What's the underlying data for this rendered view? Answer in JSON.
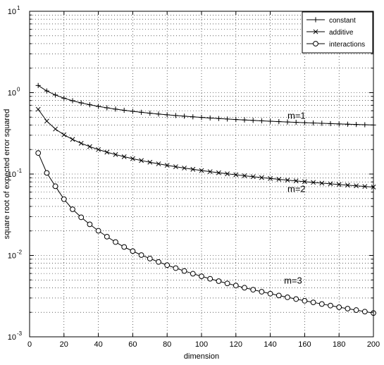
{
  "chart_data": {
    "type": "line",
    "xlabel": "dimension",
    "ylabel": "square root of expected error squared",
    "xlim": [
      0,
      200
    ],
    "ylim": [
      0.001,
      10
    ],
    "yscale": "log",
    "grid": true,
    "legend_position": "top-right",
    "x_ticks": [
      "0",
      "20",
      "40",
      "60",
      "80",
      "100",
      "120",
      "140",
      "160",
      "180",
      "200"
    ],
    "y_ticks": [
      {
        "base": "10",
        "exp": "-3"
      },
      {
        "base": "10",
        "exp": "-2"
      },
      {
        "base": "10",
        "exp": "-1"
      },
      {
        "base": "10",
        "exp": "0"
      },
      {
        "base": "10",
        "exp": "1"
      }
    ],
    "series": [
      {
        "name": "constant",
        "marker": "plus",
        "x": [
          5,
          10,
          15,
          20,
          25,
          30,
          35,
          40,
          45,
          50,
          55,
          60,
          65,
          70,
          75,
          80,
          85,
          90,
          95,
          100,
          105,
          110,
          115,
          120,
          125,
          130,
          135,
          140,
          145,
          150,
          155,
          160,
          165,
          170,
          175,
          180,
          185,
          190,
          195,
          200
        ],
        "values": [
          1.2247,
          1.0488,
          0.9354,
          0.8556,
          0.7958,
          0.7487,
          0.7104,
          0.6784,
          0.6513,
          0.628,
          0.6076,
          0.5896,
          0.5736,
          0.5593,
          0.5463,
          0.5345,
          0.5237,
          0.5138,
          0.5047,
          0.4963,
          0.4884,
          0.4811,
          0.4743,
          0.4679,
          0.4619,
          0.4562,
          0.4508,
          0.4457,
          0.4409,
          0.4363,
          0.432,
          0.4278,
          0.4239,
          0.4201,
          0.4165,
          0.413,
          0.4097,
          0.4065,
          0.4034,
          0.4005
        ]
      },
      {
        "name": "additive",
        "marker": "x",
        "x": [
          5,
          10,
          15,
          20,
          25,
          30,
          35,
          40,
          45,
          50,
          55,
          60,
          65,
          70,
          75,
          80,
          85,
          90,
          95,
          100,
          105,
          110,
          115,
          120,
          125,
          130,
          135,
          140,
          145,
          150,
          155,
          160,
          165,
          170,
          175,
          180,
          185,
          190,
          195,
          200
        ],
        "values": [
          0.6245,
          0.4472,
          0.3574,
          0.3038,
          0.2665,
          0.2387,
          0.2172,
          0.1999,
          0.1856,
          0.1736,
          0.1633,
          0.1544,
          0.1466,
          0.1397,
          0.1335,
          0.128,
          0.123,
          0.1185,
          0.1143,
          0.1105,
          0.107,
          0.1037,
          0.1007,
          0.0979,
          0.0952,
          0.0928,
          0.0904,
          0.0882,
          0.0862,
          0.0842,
          0.0824,
          0.0806,
          0.0789,
          0.0773,
          0.0758,
          0.0744,
          0.073,
          0.0717,
          0.0704,
          0.0692
        ]
      },
      {
        "name": "interactions",
        "marker": "circle",
        "x": [
          5,
          10,
          15,
          20,
          25,
          30,
          35,
          40,
          45,
          50,
          55,
          60,
          65,
          70,
          75,
          80,
          85,
          90,
          95,
          100,
          105,
          110,
          115,
          120,
          125,
          130,
          135,
          140,
          145,
          150,
          155,
          160,
          165,
          170,
          175,
          180,
          185,
          190,
          195,
          200
        ],
        "values": [
          0.1813,
          0.1033,
          0.0708,
          0.0491,
          0.0369,
          0.0294,
          0.0241,
          0.0201,
          0.017,
          0.0146,
          0.0127,
          0.0113,
          0.0101,
          0.00915,
          0.00832,
          0.0076,
          0.00698,
          0.00644,
          0.00596,
          0.00554,
          0.00517,
          0.00483,
          0.00453,
          0.00426,
          0.00401,
          0.00379,
          0.00358,
          0.00339,
          0.00322,
          0.00306,
          0.00291,
          0.00277,
          0.00265,
          0.00253,
          0.00242,
          0.00231,
          0.00222,
          0.00213,
          0.00204,
          0.00196
        ]
      }
    ],
    "annotations": [
      {
        "text": "m=1",
        "x": 150,
        "y": 0.48
      },
      {
        "text": "m=2",
        "x": 150,
        "y": 0.06
      },
      {
        "text": "m=3",
        "x": 148,
        "y": 0.0045
      }
    ]
  }
}
